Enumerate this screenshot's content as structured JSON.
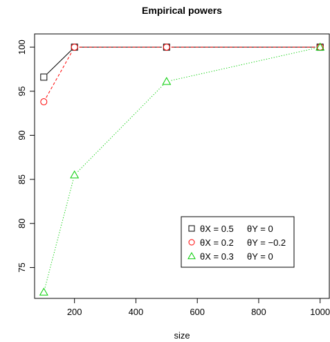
{
  "chart_data": {
    "type": "line",
    "title": "Empirical powers",
    "xlabel": "size",
    "ylabel": "",
    "xlim": [
      70,
      1030
    ],
    "ylim": [
      71.5,
      101.5
    ],
    "xticks": [
      200,
      400,
      600,
      800,
      1000
    ],
    "yticks": [
      75,
      80,
      85,
      90,
      95,
      100
    ],
    "x": [
      100,
      200,
      500,
      1000
    ],
    "series": [
      {
        "name_parts": [
          "θX = 0.5",
          "θY = 0"
        ],
        "values": [
          96.6,
          100,
          100,
          100
        ],
        "color": "#000000",
        "marker": "square",
        "linestyle": "solid"
      },
      {
        "name_parts": [
          "θX = 0.2",
          "θY = −0.2"
        ],
        "values": [
          93.8,
          100,
          100,
          100
        ],
        "color": "#ff0000",
        "marker": "circle",
        "linestyle": "dashed"
      },
      {
        "name_parts": [
          "θX = 0.3",
          "θY = 0"
        ],
        "values": [
          72.2,
          85.5,
          96.1,
          100
        ],
        "color": "#00cd00",
        "marker": "triangle",
        "linestyle": "dotted"
      }
    ],
    "legend_position": "bottom-right",
    "grid": false
  }
}
